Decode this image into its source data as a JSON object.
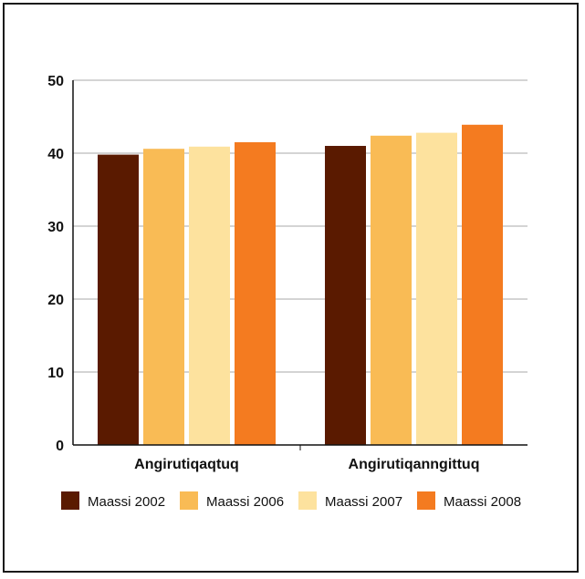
{
  "chart_data": {
    "type": "bar",
    "categories": [
      "Angirutiqaqtuq",
      "Angirutiqanngittuq"
    ],
    "series": [
      {
        "name": "Maassi 2002",
        "color": "#5a1a00",
        "values": [
          39.8,
          41.0
        ]
      },
      {
        "name": "Maassi 2006",
        "color": "#f9bb55",
        "values": [
          40.6,
          42.4
        ]
      },
      {
        "name": "Maassi 2007",
        "color": "#fde29e",
        "values": [
          40.9,
          42.8
        ]
      },
      {
        "name": "Maassi 2008",
        "color": "#f47b20",
        "values": [
          41.5,
          43.9
        ]
      }
    ],
    "yticks": [
      0,
      10,
      20,
      30,
      40,
      50
    ],
    "ylim": [
      0,
      50
    ],
    "grid": true,
    "legend": "bottom"
  }
}
